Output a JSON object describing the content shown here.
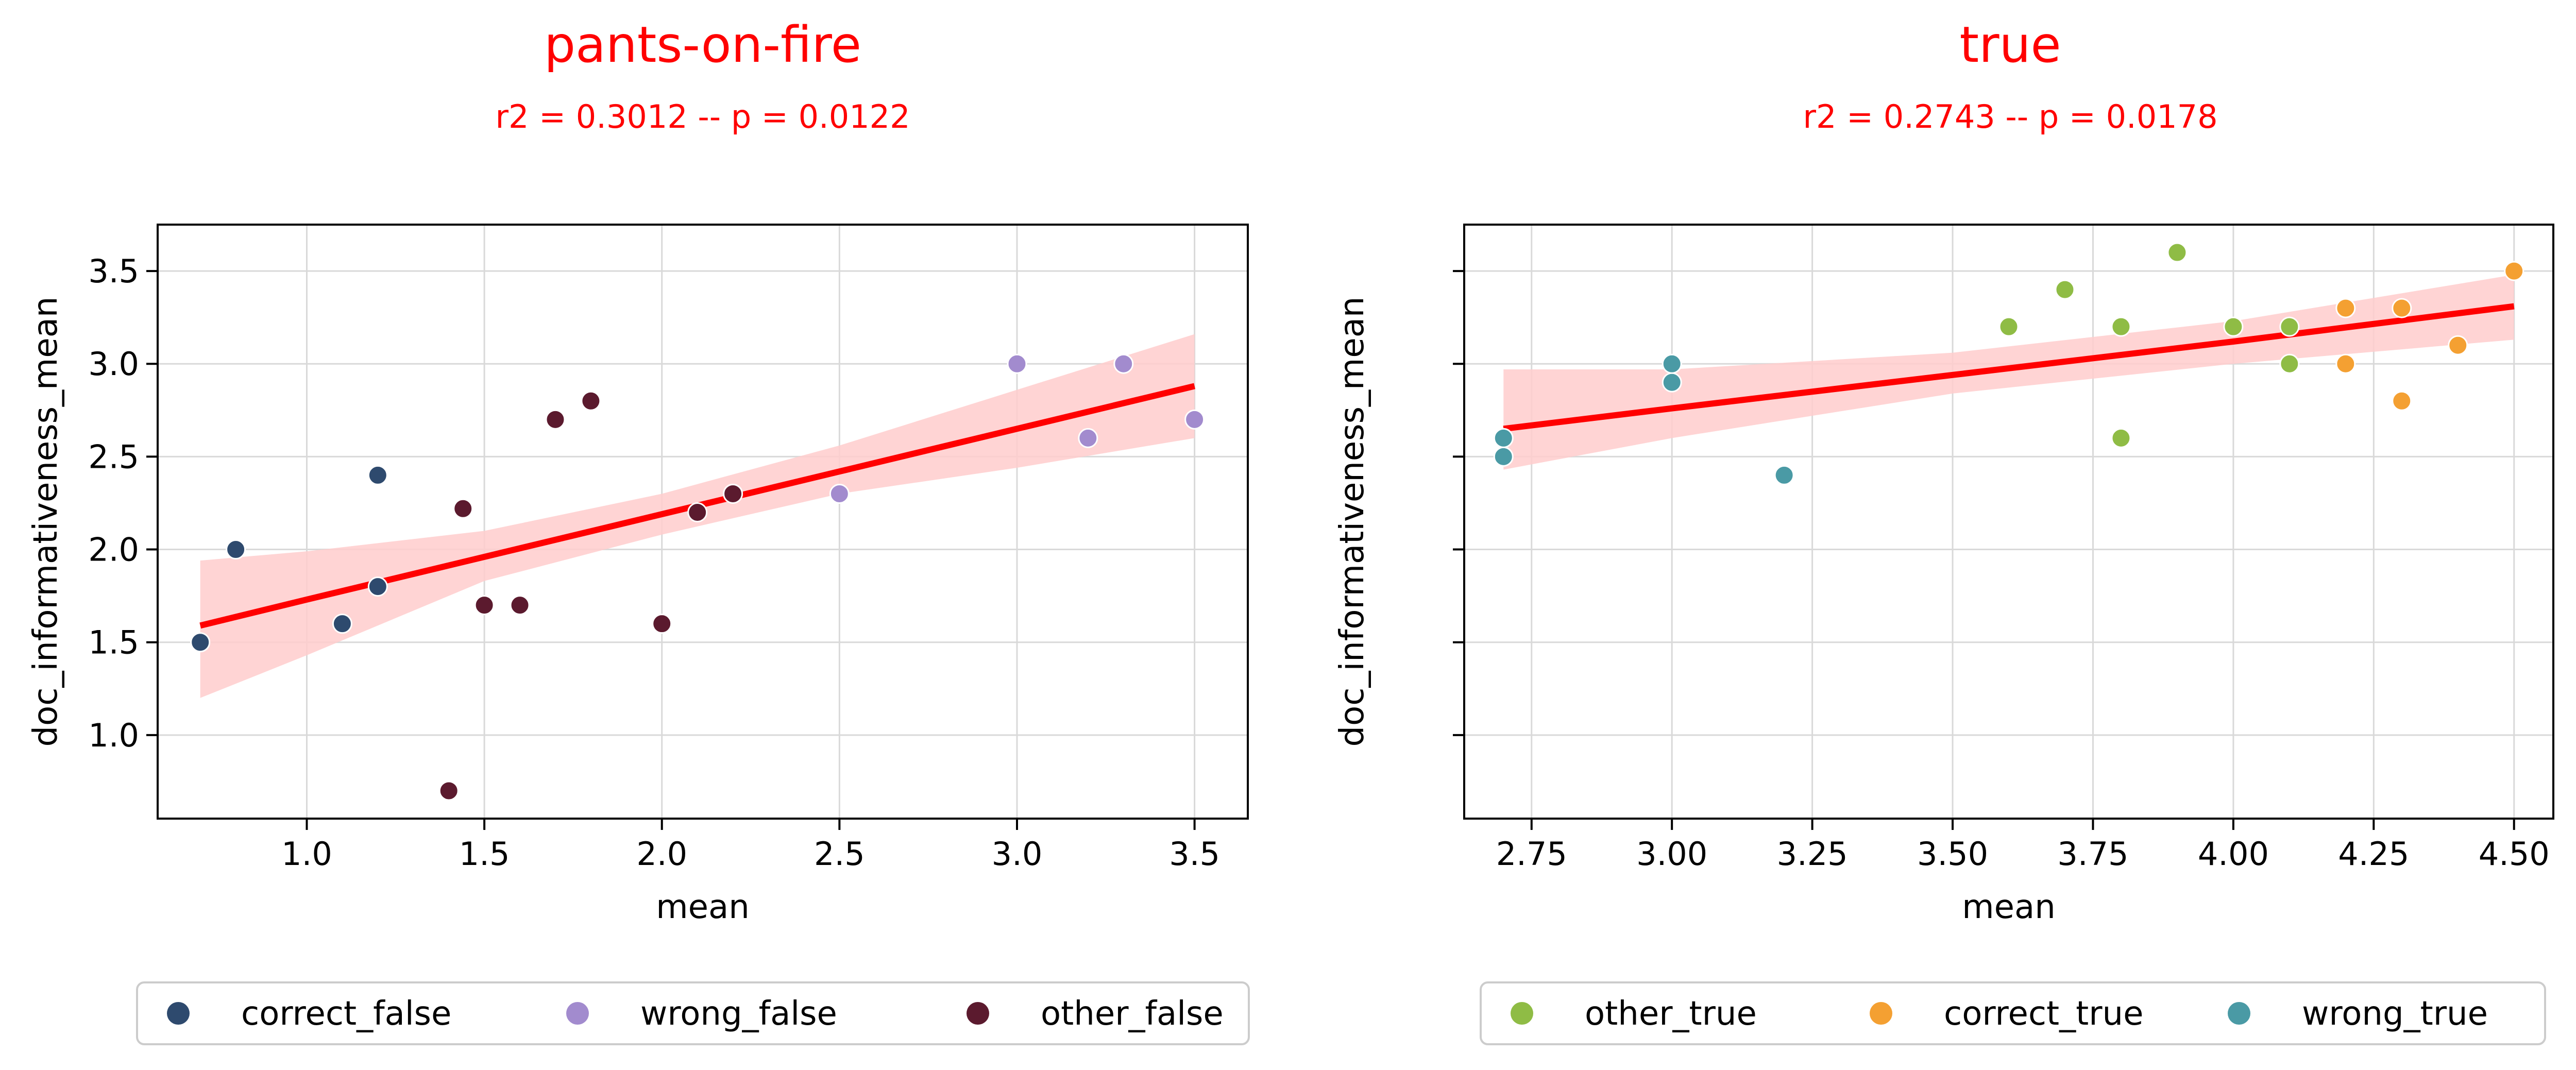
{
  "colors": {
    "accent": "#ff0000",
    "band": "#ffcccc",
    "grid": "#d9d9d9",
    "axis": "#000000",
    "legend_border": "#cccccc"
  },
  "chart_data": [
    {
      "type": "scatter",
      "title": "pants-on-fire",
      "subtitle": "r2 = 0.3012 -- p = 0.0122",
      "xlabel": "mean",
      "ylabel": "doc_informativeness_mean",
      "xlim": [
        0.58,
        3.65
      ],
      "ylim": [
        0.55,
        3.75
      ],
      "xticks": [
        1.0,
        1.5,
        2.0,
        2.5,
        3.0,
        3.5
      ],
      "xtick_labels": [
        "1.0",
        "1.5",
        "2.0",
        "2.5",
        "3.0",
        "3.5"
      ],
      "yticks": [
        1.0,
        1.5,
        2.0,
        2.5,
        3.0,
        3.5
      ],
      "ytick_labels": [
        "1.0",
        "1.5",
        "2.0",
        "2.5",
        "3.0",
        "3.5"
      ],
      "grid": true,
      "legend_position": "below",
      "series": [
        {
          "name": "correct_false",
          "color": "#2e4a6e",
          "points": [
            [
              0.7,
              1.5
            ],
            [
              0.8,
              2.0
            ],
            [
              1.1,
              1.6
            ],
            [
              1.2,
              1.8
            ],
            [
              1.2,
              2.4
            ],
            [
              2.2,
              2.3
            ]
          ]
        },
        {
          "name": "wrong_false",
          "color": "#a28bce",
          "points": [
            [
              2.5,
              2.3
            ],
            [
              3.0,
              3.0
            ],
            [
              3.2,
              2.6
            ],
            [
              3.3,
              3.0
            ],
            [
              3.5,
              2.7
            ]
          ]
        },
        {
          "name": "other_false",
          "color": "#5b1a2e",
          "points": [
            [
              1.4,
              0.7
            ],
            [
              1.44,
              2.22
            ],
            [
              1.5,
              1.7
            ],
            [
              1.6,
              1.7
            ],
            [
              1.7,
              2.7
            ],
            [
              1.8,
              2.8
            ],
            [
              2.0,
              1.6
            ],
            [
              2.1,
              2.2
            ],
            [
              2.2,
              2.3
            ]
          ]
        }
      ],
      "regression": {
        "x": [
          0.7,
          1.0,
          1.5,
          2.0,
          2.5,
          3.0,
          3.5
        ],
        "y": [
          1.59,
          1.73,
          1.96,
          2.19,
          2.42,
          2.65,
          2.88
        ],
        "lower": [
          1.2,
          1.43,
          1.83,
          2.08,
          2.3,
          2.44,
          2.6
        ],
        "upper": [
          1.94,
          1.99,
          2.1,
          2.3,
          2.56,
          2.86,
          3.16
        ]
      }
    },
    {
      "type": "scatter",
      "title": "true",
      "subtitle": "r2 = 0.2743 -- p = 0.0178",
      "xlabel": "mean",
      "ylabel": "doc_informativeness_mean",
      "xlim": [
        2.63,
        4.57
      ],
      "ylim": [
        0.55,
        3.75
      ],
      "xticks": [
        2.75,
        3.0,
        3.25,
        3.5,
        3.75,
        4.0,
        4.25,
        4.5
      ],
      "xtick_labels": [
        "2.75",
        "3.00",
        "3.25",
        "3.50",
        "3.75",
        "4.00",
        "4.25",
        "4.50"
      ],
      "yticks": [
        1.0,
        1.5,
        2.0,
        2.5,
        3.0,
        3.5
      ],
      "ytick_labels": [
        "",
        "",
        "",
        "",
        "",
        ""
      ],
      "grid": true,
      "legend_position": "below",
      "series": [
        {
          "name": "other_true",
          "color": "#8fbc45",
          "points": [
            [
              3.6,
              3.2
            ],
            [
              3.7,
              3.4
            ],
            [
              3.8,
              3.2
            ],
            [
              3.8,
              2.6
            ],
            [
              3.9,
              3.6
            ],
            [
              4.0,
              3.2
            ],
            [
              4.1,
              3.2
            ],
            [
              4.1,
              3.0
            ]
          ]
        },
        {
          "name": "correct_true",
          "color": "#f4a032",
          "points": [
            [
              4.2,
              3.3
            ],
            [
              4.2,
              3.0
            ],
            [
              4.3,
              3.3
            ],
            [
              4.3,
              2.8
            ],
            [
              4.4,
              3.1
            ],
            [
              4.5,
              3.5
            ]
          ]
        },
        {
          "name": "wrong_true",
          "color": "#4a9aa5",
          "points": [
            [
              2.7,
              2.6
            ],
            [
              2.7,
              2.5
            ],
            [
              3.0,
              3.0
            ],
            [
              3.0,
              2.9
            ],
            [
              3.2,
              2.4
            ]
          ]
        }
      ],
      "regression": {
        "x": [
          2.7,
          3.0,
          3.5,
          4.0,
          4.5
        ],
        "y": [
          2.65,
          2.76,
          2.94,
          3.12,
          3.31
        ],
        "lower": [
          2.43,
          2.6,
          2.84,
          3.0,
          3.13
        ],
        "upper": [
          2.97,
          2.97,
          3.06,
          3.23,
          3.48
        ]
      }
    }
  ]
}
